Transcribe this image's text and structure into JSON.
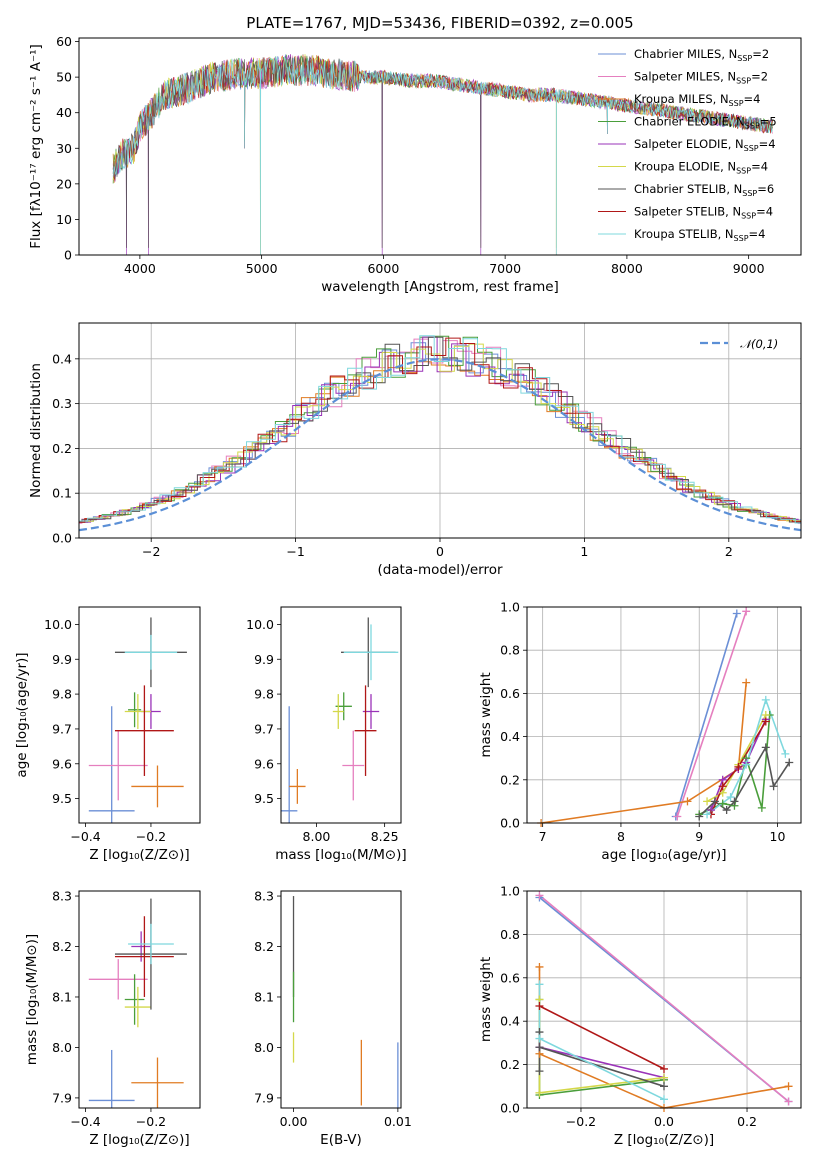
{
  "title": "PLATE=1767, MJD=53436, FIBERID=0392, z=0.005",
  "colors": {
    "Chabrier MILES": "#6b8fd6",
    "Salpeter MILES": "#e57fbf",
    "Kroupa MILES": "#e07b23",
    "Chabrier ELODIE": "#4a9e3b",
    "Salpeter ELODIE": "#9a33b8",
    "Kroupa ELODIE": "#d4d84a",
    "Chabrier STELIB": "#555555",
    "Salpeter STELIB": "#b01717",
    "Kroupa STELIB": "#7fd8de"
  },
  "chart_data": [
    {
      "id": "spectrum",
      "type": "line",
      "xlabel": "wavelength [Angstrom, rest frame]",
      "ylabel": "Flux [fλ10⁻¹⁷ erg cm⁻² s⁻¹ A⁻¹]",
      "xlim": [
        3500,
        9430
      ],
      "ylim": [
        0,
        61
      ],
      "xticks": [
        4000,
        5000,
        6000,
        7000,
        8000,
        9000
      ],
      "yticks": [
        0,
        10,
        20,
        30,
        40,
        50,
        60
      ],
      "legend_position": "top-right",
      "legend": [
        {
          "label": "Chabrier MILES, N",
          "sub": "SSP",
          "suffix": "=2",
          "color": "#6b8fd6"
        },
        {
          "label": "Salpeter MILES, N",
          "sub": "SSP",
          "suffix": "=2",
          "color": "#e57fbf"
        },
        {
          "label": "Kroupa MILES, N",
          "sub": "SSP",
          "suffix": "=4",
          "color": "#e07b23"
        },
        {
          "label": "Chabrier ELODIE, N",
          "sub": "SSP",
          "suffix": "=5",
          "color": "#4a9e3b"
        },
        {
          "label": "Salpeter ELODIE, N",
          "sub": "SSP",
          "suffix": "=4",
          "color": "#9a33b8"
        },
        {
          "label": "Kroupa ELODIE, N",
          "sub": "SSP",
          "suffix": "=4",
          "color": "#d4d84a"
        },
        {
          "label": "Chabrier STELIB, N",
          "sub": "SSP",
          "suffix": "=6",
          "color": "#555555"
        },
        {
          "label": "Salpeter STELIB, N",
          "sub": "SSP",
          "suffix": "=4",
          "color": "#b01717"
        },
        {
          "label": "Kroupa STELIB, N",
          "sub": "SSP",
          "suffix": "=4",
          "color": "#7fd8de"
        }
      ],
      "continuum": [
        [
          3780,
          24
        ],
        [
          3850,
          28
        ],
        [
          3950,
          30
        ],
        [
          4000,
          36
        ],
        [
          4100,
          40
        ],
        [
          4200,
          45
        ],
        [
          4400,
          47
        ],
        [
          4600,
          50
        ],
        [
          4800,
          51
        ],
        [
          5000,
          51
        ],
        [
          5200,
          52
        ],
        [
          5400,
          52
        ],
        [
          5600,
          51
        ],
        [
          5800,
          50
        ],
        [
          6000,
          50
        ],
        [
          6200,
          49
        ],
        [
          6400,
          49
        ],
        [
          6600,
          48
        ],
        [
          6800,
          47
        ],
        [
          7000,
          46
        ],
        [
          7200,
          45
        ],
        [
          7400,
          45
        ],
        [
          7600,
          44
        ],
        [
          7800,
          43
        ],
        [
          8000,
          42
        ],
        [
          8200,
          41
        ],
        [
          8400,
          40
        ],
        [
          8600,
          39
        ],
        [
          8800,
          38
        ],
        [
          9000,
          37
        ],
        [
          9200,
          36
        ]
      ],
      "dips": [
        [
          3890,
          0
        ],
        [
          4070,
          0
        ],
        [
          4860,
          30
        ],
        [
          4990,
          0
        ],
        [
          5990,
          0
        ],
        [
          6800,
          0
        ],
        [
          7420,
          0
        ],
        [
          7840,
          34
        ],
        [
          8600,
          38
        ],
        [
          8700,
          37
        ]
      ]
    },
    {
      "id": "residual-distribution",
      "type": "step",
      "xlabel": "(data-model)/error",
      "ylabel": "Normed distribution",
      "xlim": [
        -2.5,
        2.5
      ],
      "ylim": [
        0,
        0.48
      ],
      "xticks": [
        -2,
        -1,
        0,
        1,
        2
      ],
      "yticks": [
        0.0,
        0.1,
        0.2,
        0.3,
        0.4
      ],
      "grid": true,
      "legend_position": "top-right",
      "reference_curve": {
        "label": "𝒩(0,1)",
        "color": "#5b8fd6",
        "mean": 0,
        "sigma": 1
      }
    },
    {
      "id": "age-vs-Z",
      "type": "errorbar",
      "xlabel": "Z [log₁₀(Z/Z⊙)]",
      "ylabel": "age  [log₁₀(age/yr)]",
      "xlim": [
        -0.42,
        -0.05
      ],
      "ylim": [
        9.43,
        10.05
      ],
      "xticks": [
        -0.4,
        -0.2
      ],
      "yticks": [
        9.5,
        9.6,
        9.7,
        9.8,
        9.9,
        10.0
      ],
      "points": [
        {
          "series": "Chabrier MILES",
          "x": -0.32,
          "y": 9.465,
          "xerr": 0.07,
          "yerr": 0.3
        },
        {
          "series": "Salpeter MILES",
          "x": -0.3,
          "y": 9.595,
          "xerr": 0.09,
          "yerr": 0.1
        },
        {
          "series": "Kroupa MILES",
          "x": -0.18,
          "y": 9.535,
          "xerr": 0.08,
          "yerr": 0.06
        },
        {
          "series": "Chabrier ELODIE",
          "x": -0.25,
          "y": 9.755,
          "xerr": 0.02,
          "yerr": 0.05
        },
        {
          "series": "Salpeter ELODIE",
          "x": -0.2,
          "y": 9.75,
          "xerr": 0.03,
          "yerr": 0.05
        },
        {
          "series": "Kroupa ELODIE",
          "x": -0.24,
          "y": 9.75,
          "xerr": 0.04,
          "yerr": 0.05
        },
        {
          "series": "Chabrier STELIB",
          "x": -0.2,
          "y": 9.92,
          "xerr": 0.11,
          "yerr": 0.1
        },
        {
          "series": "Salpeter STELIB",
          "x": -0.22,
          "y": 9.695,
          "xerr": 0.09,
          "yerr": 0.13
        },
        {
          "series": "Kroupa STELIB",
          "x": -0.2,
          "y": 9.92,
          "xerr": 0.08,
          "yerr": 0.05
        }
      ]
    },
    {
      "id": "age-vs-mass",
      "type": "errorbar",
      "xlabel": "mass [log₁₀(M/M⊙)]",
      "ylabel": "",
      "xlim": [
        7.87,
        8.31
      ],
      "ylim": [
        9.43,
        10.05
      ],
      "xticks": [
        8.0,
        8.25
      ],
      "yticks": [
        9.5,
        9.6,
        9.7,
        9.8,
        9.9,
        10.0
      ],
      "points": [
        {
          "series": "Chabrier MILES",
          "x": 7.9,
          "y": 9.465,
          "xerr": 0.03,
          "yerr": 0.3
        },
        {
          "series": "Salpeter MILES",
          "x": 8.135,
          "y": 9.595,
          "xerr": 0.04,
          "yerr": 0.1
        },
        {
          "series": "Kroupa MILES",
          "x": 7.93,
          "y": 9.535,
          "xerr": 0.03,
          "yerr": 0.05
        },
        {
          "series": "Chabrier ELODIE",
          "x": 8.1,
          "y": 9.765,
          "xerr": 0.03,
          "yerr": 0.04
        },
        {
          "series": "Salpeter ELODIE",
          "x": 8.2,
          "y": 9.75,
          "xerr": 0.03,
          "yerr": 0.05
        },
        {
          "series": "Kroupa ELODIE",
          "x": 8.08,
          "y": 9.75,
          "xerr": 0.02,
          "yerr": 0.05
        },
        {
          "series": "Chabrier STELIB",
          "x": 8.19,
          "y": 9.92,
          "xerr": 0.1,
          "yerr": 0.1
        },
        {
          "series": "Salpeter STELIB",
          "x": 8.18,
          "y": 9.695,
          "xerr": 0.04,
          "yerr": 0.13
        },
        {
          "series": "Kroupa STELIB",
          "x": 8.2,
          "y": 9.92,
          "xerr": 0.1,
          "yerr": 0.08
        }
      ]
    },
    {
      "id": "massweight-vs-age",
      "type": "line",
      "xlabel": "age  [log₁₀(age/yr)]",
      "ylabel": "mass weight",
      "xlim": [
        6.8,
        10.3
      ],
      "ylim": [
        0,
        1.0
      ],
      "xticks": [
        7,
        8,
        9,
        10
      ],
      "yticks": [
        0.0,
        0.2,
        0.4,
        0.6,
        0.8,
        1.0
      ],
      "grid": true,
      "series": [
        {
          "name": "Chabrier MILES",
          "points": [
            [
              8.7,
              0.03
            ],
            [
              9.48,
              0.97
            ]
          ]
        },
        {
          "name": "Salpeter MILES",
          "points": [
            [
              8.72,
              0.03
            ],
            [
              9.6,
              0.98
            ]
          ]
        },
        {
          "name": "Kroupa MILES",
          "points": [
            [
              6.98,
              0.0
            ],
            [
              8.85,
              0.1
            ],
            [
              9.5,
              0.25
            ],
            [
              9.6,
              0.65
            ]
          ]
        },
        {
          "name": "Chabrier ELODIE",
          "points": [
            [
              9.0,
              0.04
            ],
            [
              9.3,
              0.09
            ],
            [
              9.45,
              0.08
            ],
            [
              9.6,
              0.3
            ],
            [
              9.8,
              0.07
            ],
            [
              9.9,
              0.5
            ]
          ]
        },
        {
          "name": "Salpeter ELODIE",
          "points": [
            [
              9.15,
              0.06
            ],
            [
              9.3,
              0.2
            ],
            [
              9.5,
              0.25
            ],
            [
              9.6,
              0.28
            ],
            [
              9.85,
              0.48
            ]
          ]
        },
        {
          "name": "Kroupa ELODIE",
          "points": [
            [
              9.1,
              0.1
            ],
            [
              9.3,
              0.14
            ],
            [
              9.5,
              0.27
            ],
            [
              9.85,
              0.5
            ]
          ]
        },
        {
          "name": "Chabrier STELIB",
          "points": [
            [
              9.0,
              0.03
            ],
            [
              9.2,
              0.1
            ],
            [
              9.35,
              0.06
            ],
            [
              9.45,
              0.1
            ],
            [
              9.85,
              0.35
            ],
            [
              9.95,
              0.17
            ],
            [
              10.15,
              0.28
            ]
          ]
        },
        {
          "name": "Salpeter STELIB",
          "points": [
            [
              9.15,
              0.04
            ],
            [
              9.3,
              0.17
            ],
            [
              9.5,
              0.26
            ],
            [
              9.85,
              0.47
            ]
          ]
        },
        {
          "name": "Kroupa STELIB",
          "points": [
            [
              9.1,
              0.04
            ],
            [
              9.4,
              0.12
            ],
            [
              9.6,
              0.27
            ],
            [
              9.85,
              0.57
            ],
            [
              10.1,
              0.32
            ]
          ]
        }
      ]
    },
    {
      "id": "mass-vs-Z",
      "type": "errorbar",
      "xlabel": "Z [log₁₀(Z/Z⊙)]",
      "ylabel": "mass [log₁₀(M/M⊙)]",
      "xlim": [
        -0.42,
        -0.05
      ],
      "ylim": [
        7.88,
        8.31
      ],
      "xticks": [
        -0.4,
        -0.2
      ],
      "yticks": [
        7.9,
        8.0,
        8.1,
        8.2,
        8.3
      ],
      "points": [
        {
          "series": "Chabrier MILES",
          "x": -0.32,
          "y": 7.895,
          "xerr": 0.07,
          "yerr": 0.1
        },
        {
          "series": "Salpeter MILES",
          "x": -0.3,
          "y": 8.135,
          "xerr": 0.09,
          "yerr": 0.04
        },
        {
          "series": "Kroupa MILES",
          "x": -0.18,
          "y": 7.93,
          "xerr": 0.08,
          "yerr": 0.05
        },
        {
          "series": "Chabrier ELODIE",
          "x": -0.25,
          "y": 8.095,
          "xerr": 0.03,
          "yerr": 0.05
        },
        {
          "series": "Salpeter ELODIE",
          "x": -0.23,
          "y": 8.2,
          "xerr": 0.03,
          "yerr": 0.03
        },
        {
          "series": "Kroupa ELODIE",
          "x": -0.24,
          "y": 8.08,
          "xerr": 0.04,
          "yerr": 0.04
        },
        {
          "series": "Chabrier STELIB",
          "x": -0.2,
          "y": 8.185,
          "xerr": 0.11,
          "yerr": 0.11
        },
        {
          "series": "Salpeter STELIB",
          "x": -0.22,
          "y": 8.18,
          "xerr": 0.09,
          "yerr": 0.08
        },
        {
          "series": "Kroupa STELIB",
          "x": -0.2,
          "y": 8.205,
          "xerr": 0.07,
          "yerr": 0.04
        }
      ]
    },
    {
      "id": "mass-vs-ebv",
      "type": "errorbar",
      "xlabel": "E(B-V)",
      "ylabel": "",
      "xlim": [
        -0.0012,
        0.0103
      ],
      "ylim": [
        7.88,
        8.31
      ],
      "xticks": [
        0.0,
        0.01
      ],
      "xticklabels": [
        "0.00",
        "0.01"
      ],
      "yticks": [
        7.9,
        8.0,
        8.1,
        8.2,
        8.3
      ],
      "points": [
        {
          "series": "Chabrier MILES",
          "x": 0.01,
          "y": 7.94,
          "xerr": 0,
          "yerr": 0.07
        },
        {
          "series": "Kroupa MILES",
          "x": 0.0065,
          "y": 7.95,
          "xerr": 0,
          "yerr": 0.065
        },
        {
          "series": "Kroupa ELODIE",
          "x": 0.0,
          "y": 8.0,
          "xerr": 0,
          "yerr": 0.03
        },
        {
          "series": "Chabrier STELIB",
          "x": 0.0,
          "y": 8.2,
          "xerr": 0,
          "yerr": 0.1
        },
        {
          "series": "Chabrier ELODIE",
          "x": 0.0,
          "y": 8.1,
          "xerr": 0,
          "yerr": 0.05
        }
      ]
    },
    {
      "id": "massweight-vs-Z",
      "type": "line",
      "xlabel": "Z [log₁₀(Z/Z⊙)]",
      "ylabel": "mass weight",
      "xlim": [
        -0.33,
        0.33
      ],
      "ylim": [
        0,
        1.0
      ],
      "xticks": [
        -0.2,
        0.0,
        0.2
      ],
      "xticklabels": [
        "−0.2",
        "0.0",
        "0.2"
      ],
      "yticks": [
        0.0,
        0.2,
        0.4,
        0.6,
        0.8,
        1.0
      ],
      "grid": true,
      "series": [
        {
          "name": "Chabrier MILES",
          "points": [
            [
              -0.3,
              0.97
            ],
            [
              0.3,
              0.03
            ]
          ]
        },
        {
          "name": "Salpeter MILES",
          "points": [
            [
              -0.3,
              0.98
            ],
            [
              0.3,
              0.03
            ]
          ]
        },
        {
          "name": "Kroupa MILES",
          "points": [
            [
              -0.3,
              0.65
            ],
            [
              -0.3,
              0.25
            ],
            [
              0.0,
              0.0
            ],
            [
              0.3,
              0.1
            ]
          ]
        },
        {
          "name": "Chabrier ELODIE",
          "points": [
            [
              -0.3,
              0.5
            ],
            [
              -0.3,
              0.06
            ],
            [
              0.0,
              0.13
            ]
          ]
        },
        {
          "name": "Salpeter ELODIE",
          "points": [
            [
              -0.3,
              0.28
            ],
            [
              0.0,
              0.14
            ]
          ]
        },
        {
          "name": "Kroupa ELODIE",
          "points": [
            [
              -0.3,
              0.5
            ],
            [
              -0.3,
              0.07
            ],
            [
              0.0,
              0.14
            ]
          ]
        },
        {
          "name": "Chabrier STELIB",
          "points": [
            [
              -0.3,
              0.35
            ],
            [
              -0.3,
              0.17
            ],
            [
              -0.3,
              0.28
            ],
            [
              0.0,
              0.1
            ]
          ]
        },
        {
          "name": "Salpeter STELIB",
          "points": [
            [
              -0.3,
              0.47
            ],
            [
              0.0,
              0.18
            ]
          ]
        },
        {
          "name": "Kroupa STELIB",
          "points": [
            [
              -0.3,
              0.57
            ],
            [
              -0.3,
              0.32
            ],
            [
              0.0,
              0.04
            ]
          ]
        }
      ]
    }
  ]
}
